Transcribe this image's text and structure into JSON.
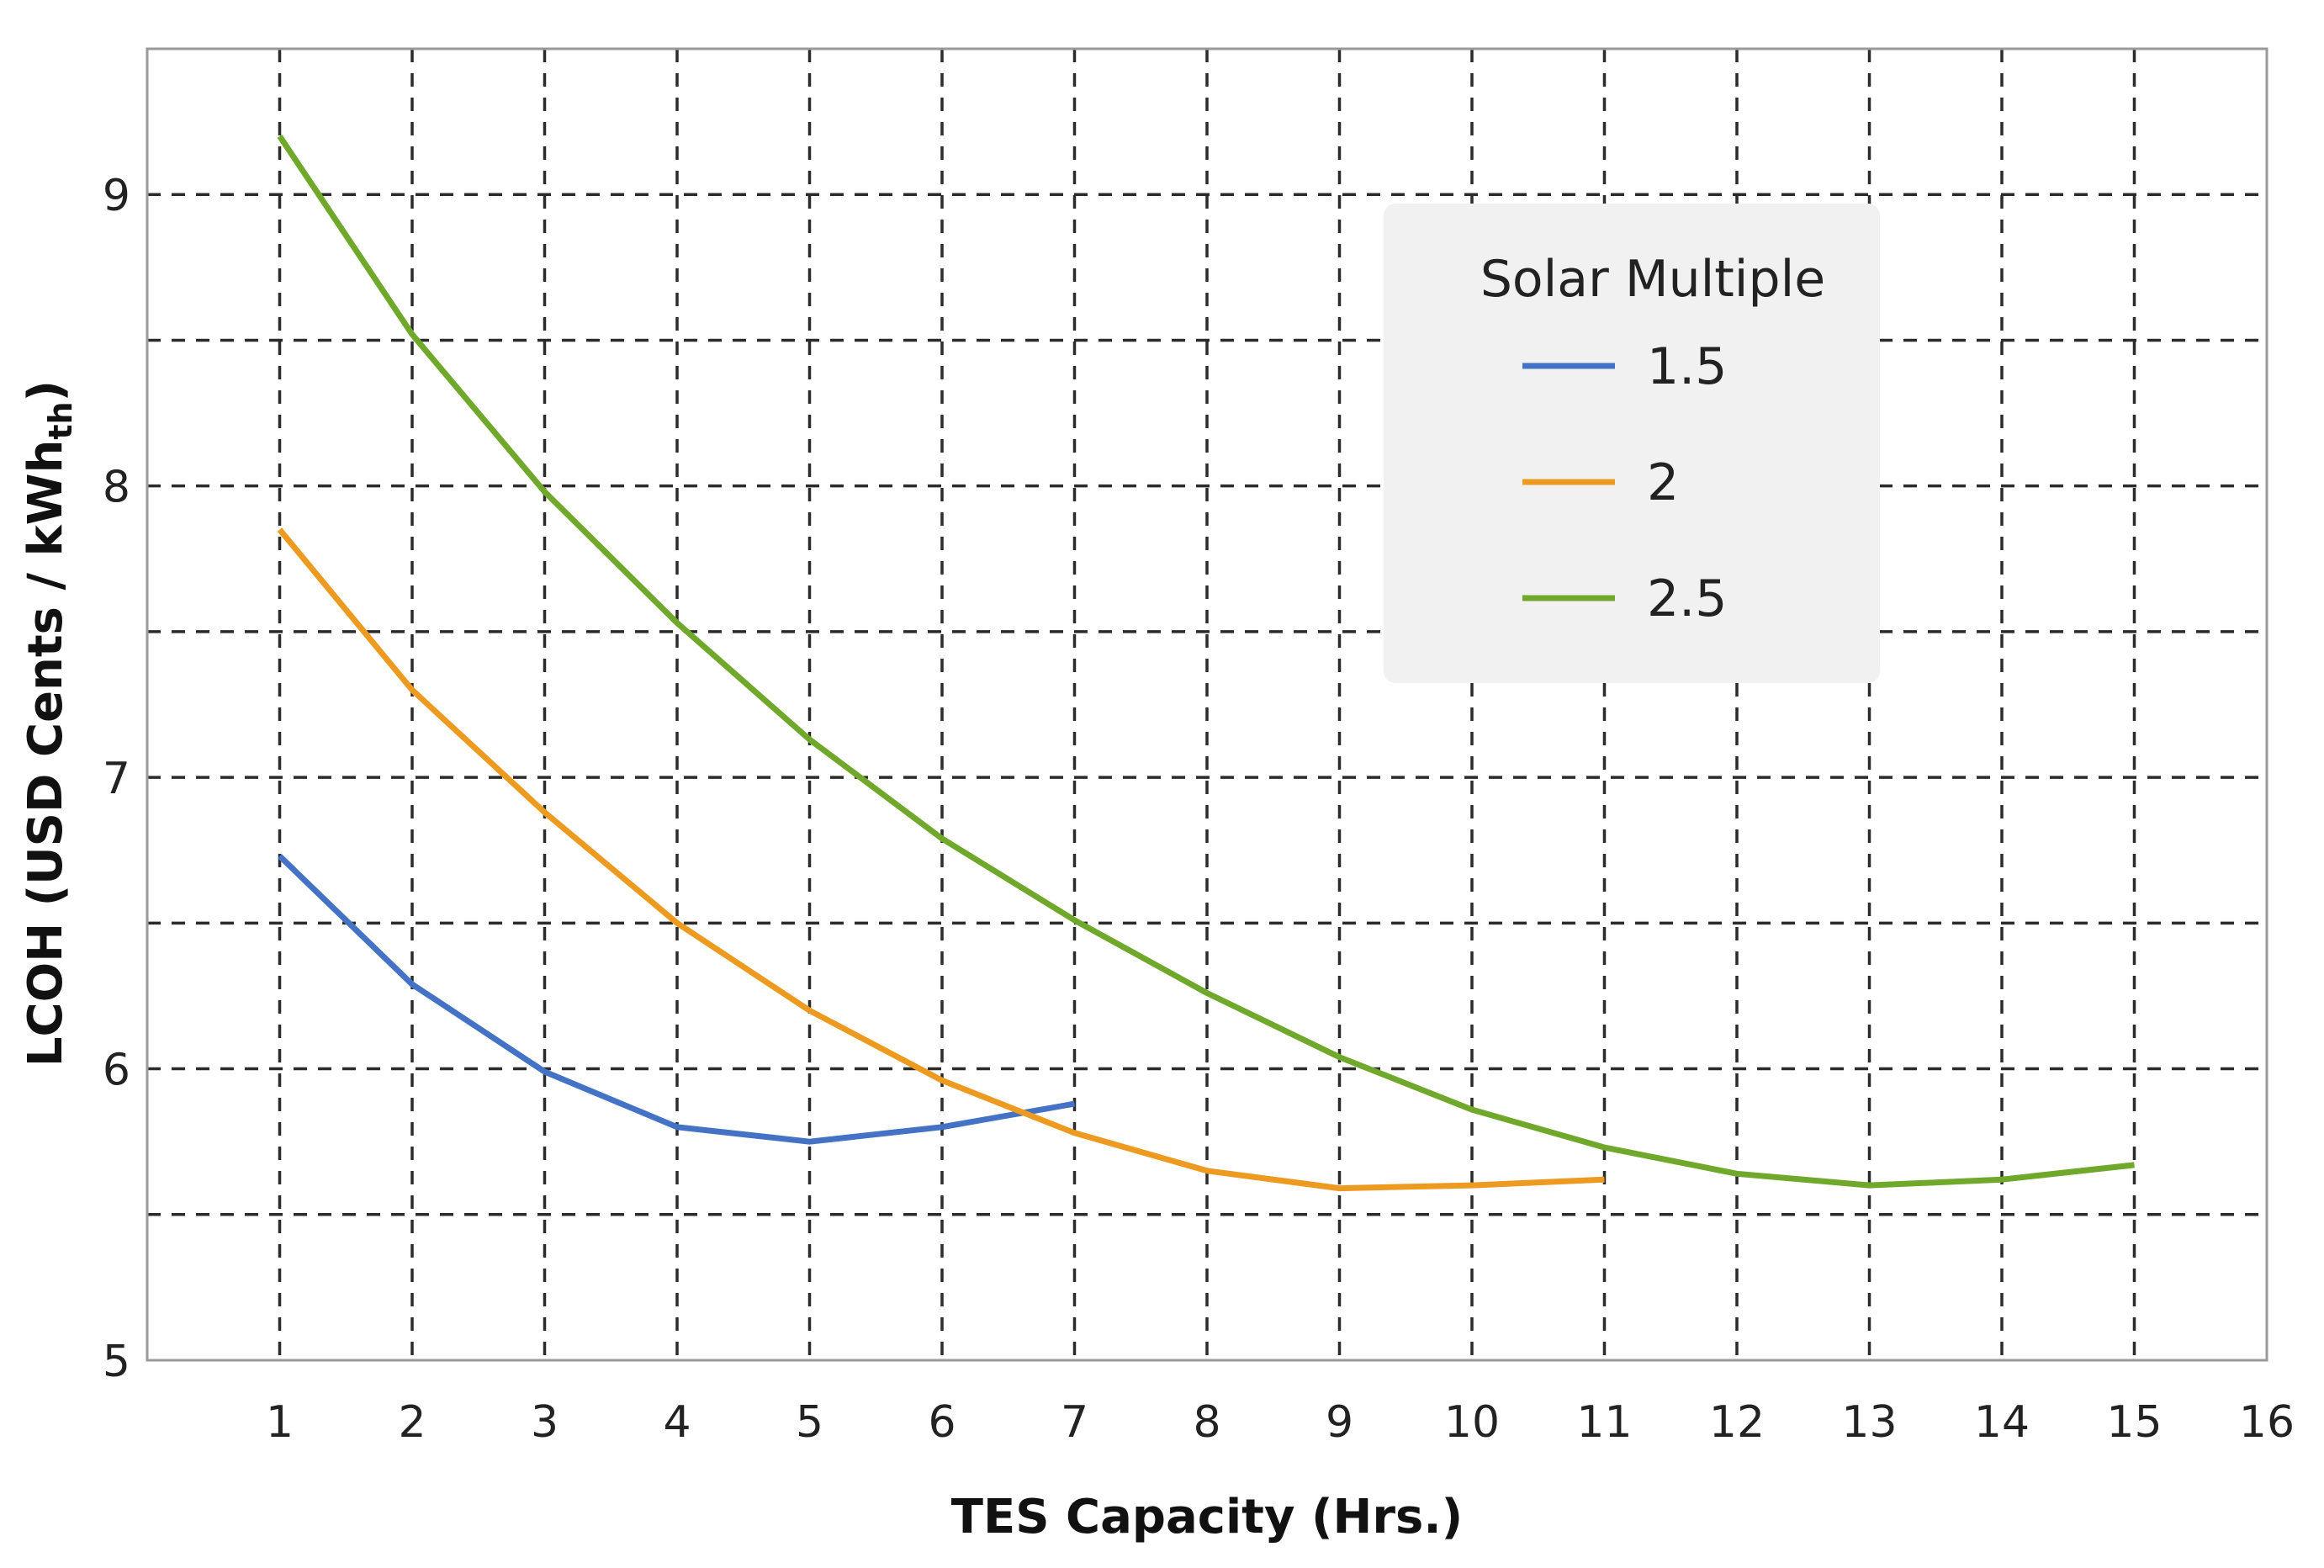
{
  "chart_data": {
    "type": "line",
    "title": "",
    "xlabel": "TES Capacity (Hrs.)",
    "ylabel": {
      "main": "LCOH (USD Cents / kWh",
      "subscript": "th",
      "close": ")"
    },
    "xlim": [
      0,
      16
    ],
    "ylim": [
      5,
      9.5
    ],
    "x_ticks": [
      1,
      2,
      3,
      4,
      5,
      6,
      7,
      8,
      9,
      10,
      11,
      12,
      13,
      14,
      15,
      16
    ],
    "y_ticks": [
      5,
      6,
      7,
      8,
      9
    ],
    "x_grid": [
      1,
      2,
      3,
      4,
      5,
      6,
      7,
      8,
      9,
      10,
      11,
      12,
      13,
      14,
      15
    ],
    "y_grid": [
      5.5,
      6,
      6.5,
      7,
      7.5,
      8,
      8.5,
      9
    ],
    "grid": true,
    "legend_title": "Solar Multiple",
    "legend_position": "top-right",
    "series": [
      {
        "name": "1.5",
        "color": "#4472C4",
        "x": [
          1,
          2,
          3,
          4,
          5,
          6,
          7
        ],
        "values": [
          6.73,
          6.29,
          5.99,
          5.8,
          5.75,
          5.8,
          5.88
        ]
      },
      {
        "name": "2",
        "color": "#ED9B20",
        "x": [
          1,
          2,
          3,
          4,
          5,
          6,
          7,
          8,
          9,
          10,
          11
        ],
        "values": [
          7.85,
          7.3,
          6.88,
          6.5,
          6.2,
          5.96,
          5.78,
          5.65,
          5.59,
          5.6,
          5.62
        ]
      },
      {
        "name": "2.5",
        "color": "#70A82C",
        "x": [
          1,
          2,
          3,
          4,
          5,
          6,
          7,
          8,
          9,
          10,
          11,
          12,
          13,
          14,
          15
        ],
        "values": [
          9.2,
          8.52,
          7.98,
          7.53,
          7.13,
          6.79,
          6.51,
          6.26,
          6.04,
          5.86,
          5.73,
          5.64,
          5.6,
          5.62,
          5.67
        ]
      }
    ]
  }
}
